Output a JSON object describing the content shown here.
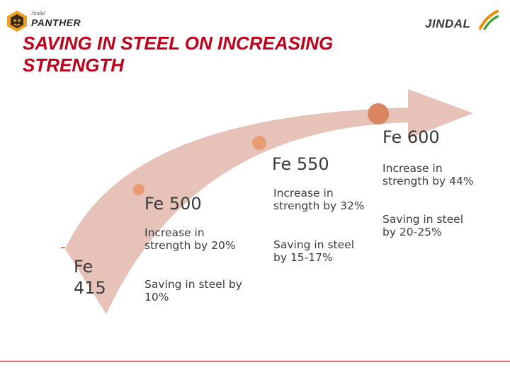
{
  "header": {
    "left_logo": {
      "sub": "Jindal",
      "brand": "PANTHER"
    },
    "right_logo": {
      "brand": "JINDAL"
    }
  },
  "title": "SAVING IN STEEL ON INCREASING STRENGTH",
  "grades": [
    {
      "label": "Fe 415"
    },
    {
      "label": "Fe 500",
      "strength_note": "Increase in strength by 20%",
      "saving_note": "Saving in steel by 10%"
    },
    {
      "label": "Fe 550",
      "strength_note": "Increase in strength by 32%",
      "saving_note": "Saving in steel by 15-17%"
    },
    {
      "label": "Fe 600",
      "strength_note": "Increase in strength by 44%",
      "saving_note": "Saving in steel by 20-25%"
    }
  ],
  "colors": {
    "title": "#c0001a",
    "arrow": "#e6c2b9",
    "marker": "#e89a72",
    "text": "#3b3b3b"
  }
}
